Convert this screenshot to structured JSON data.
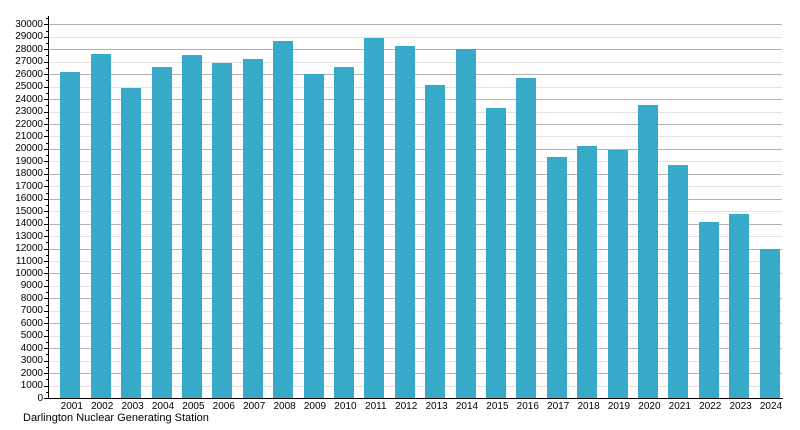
{
  "chart_data": {
    "type": "bar",
    "title": "",
    "caption": "Darlington Nuclear Generating Station",
    "xlabel": "",
    "ylabel": "",
    "categories": [
      "2001",
      "2002",
      "2003",
      "2004",
      "2005",
      "2006",
      "2007",
      "2008",
      "2009",
      "2010",
      "2011",
      "2012",
      "2013",
      "2014",
      "2015",
      "2016",
      "2017",
      "2018",
      "2019",
      "2020",
      "2021",
      "2022",
      "2023",
      "2024"
    ],
    "values": [
      26200,
      27650,
      24900,
      26600,
      27550,
      26900,
      27200,
      28700,
      26050,
      26550,
      28900,
      28300,
      25100,
      28000,
      23300,
      25700,
      19350,
      20200,
      19900,
      23500,
      18700,
      14150,
      14800,
      11950
    ],
    "ylim": [
      0,
      30000
    ],
    "ytick_interval": 1000,
    "ytick_minor_interval": 500,
    "grid": "on",
    "legend": "none",
    "bar_color": "#38a9c8",
    "grid_minor_color": "#e2e2e2",
    "grid_major_color": "#b0b0b0",
    "axis_color": "#000000"
  }
}
